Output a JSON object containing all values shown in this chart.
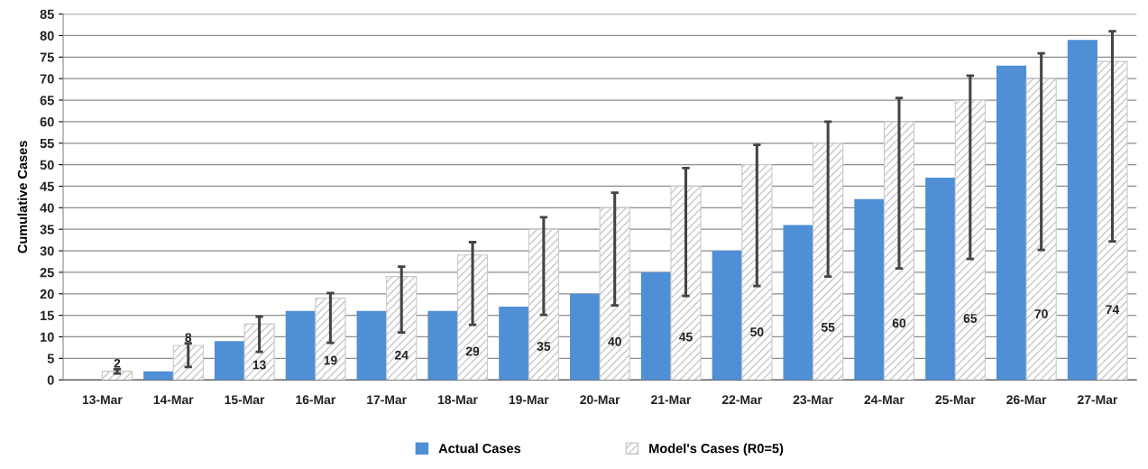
{
  "chart_data": {
    "type": "bar",
    "ylabel": "Cumulative Cases",
    "categories": [
      "13-Mar",
      "14-Mar",
      "15-Mar",
      "16-Mar",
      "17-Mar",
      "18-Mar",
      "19-Mar",
      "20-Mar",
      "21-Mar",
      "22-Mar",
      "23-Mar",
      "24-Mar",
      "25-Mar",
      "26-Mar",
      "27-Mar"
    ],
    "series": [
      {
        "name": "Actual Cases",
        "color": "#4f8fd6",
        "values": [
          0,
          2,
          9,
          16,
          16,
          16,
          17,
          20,
          25,
          30,
          36,
          42,
          47,
          73,
          79
        ]
      },
      {
        "name": "Model's Cases (R0=5)",
        "color": "#c8c8c8",
        "values": [
          2,
          8,
          13,
          19,
          24,
          29,
          35,
          40,
          45,
          50,
          55,
          60,
          65,
          70,
          74
        ],
        "value_labels": [
          "2",
          "8",
          "13",
          "19",
          "24",
          "29",
          "35",
          "40",
          "45",
          "50",
          "55",
          "60",
          "65",
          "70",
          "74"
        ],
        "errors": [
          [
            1.5,
            2.5
          ],
          [
            3,
            8.5
          ],
          [
            6.5,
            14.7
          ],
          [
            8.6,
            20.2
          ],
          [
            11,
            26.3
          ],
          [
            12.8,
            32
          ],
          [
            15.1,
            37.8
          ],
          [
            17.3,
            43.5
          ],
          [
            19.5,
            49.2
          ],
          [
            21.8,
            54.6
          ],
          [
            24,
            60
          ],
          [
            25.9,
            65.5
          ],
          [
            28.1,
            70.7
          ],
          [
            30.2,
            75.9
          ],
          [
            32.2,
            81
          ]
        ]
      }
    ],
    "ylim": [
      0,
      85
    ],
    "yticks": [
      0,
      5,
      10,
      15,
      20,
      25,
      30,
      35,
      40,
      45,
      50,
      55,
      60,
      65,
      70,
      75,
      80,
      85
    ],
    "grid": "y",
    "legend": "bottom"
  }
}
